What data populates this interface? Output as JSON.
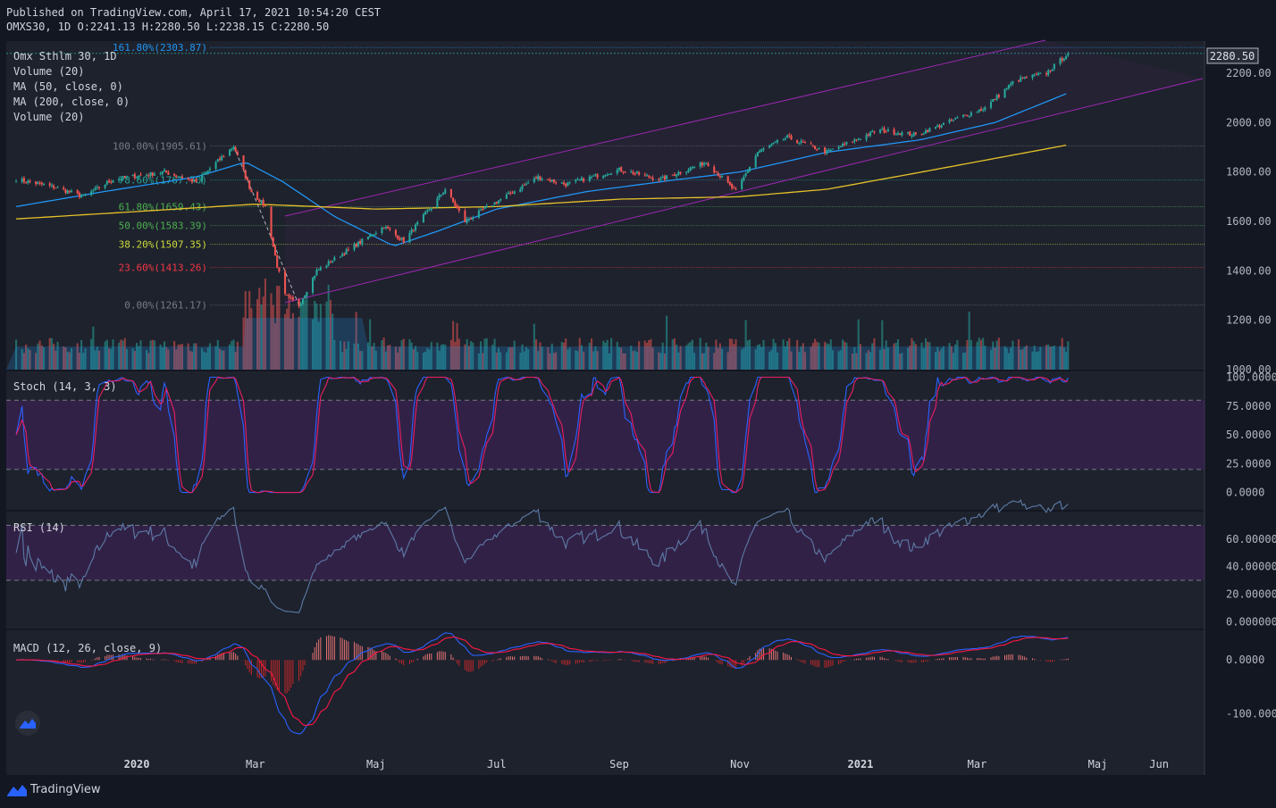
{
  "header": {
    "published": "Published on TradingView.com, April 17, 2021 10:54:20 CEST",
    "ohlc": "OMXS30, 1D O:2241.13 H:2280.50 L:2238.15 C:2280.50"
  },
  "legend": {
    "symbol": "Omx Sthlm 30, 1D",
    "vol1": "Volume (20)",
    "ma50": "MA (50, close, 0)",
    "ma200": "MA (200, close, 0)",
    "vol2": "Volume (20)"
  },
  "price_badge": "2280.50",
  "footer": {
    "brand": "TradingView"
  },
  "colors": {
    "background": "#131722",
    "pane": "#1e222d",
    "up": "#26a69a",
    "down": "#ef5350",
    "ma50": "#2196f3",
    "ma200": "#e6c229",
    "channel": "#9c27b0",
    "stoch_k": "#2962ff",
    "stoch_d": "#e91e63",
    "rsi": "#5c7ba6",
    "macd": "#2962ff",
    "signal": "#ff1744"
  },
  "chart_data": [
    {
      "type": "candlestick",
      "title": "Omx Sthlm 30, 1D",
      "ylim": [
        1000,
        2330
      ],
      "y_ticks": [
        "2200.00",
        "2000.00",
        "1800.00",
        "1600.00",
        "1400.00",
        "1200.00",
        "1000.00"
      ],
      "x_ticks": [
        "2020",
        "Mar",
        "Maj",
        "Jul",
        "Sep",
        "Nov",
        "2021",
        "Mar",
        "Maj",
        "Jun"
      ],
      "last_price": 2280.5,
      "close_path": [
        [
          "2019-11-01",
          1770
        ],
        [
          "2019-11-20",
          1740
        ],
        [
          "2019-12-05",
          1700
        ],
        [
          "2019-12-20",
          1770
        ],
        [
          "2020-01-15",
          1800
        ],
        [
          "2020-01-31",
          1760
        ],
        [
          "2020-02-19",
          1905
        ],
        [
          "2020-02-28",
          1720
        ],
        [
          "2020-03-06",
          1660
        ],
        [
          "2020-03-12",
          1420
        ],
        [
          "2020-03-16",
          1300
        ],
        [
          "2020-03-23",
          1261
        ],
        [
          "2020-04-01",
          1400
        ],
        [
          "2020-04-20",
          1500
        ],
        [
          "2020-05-05",
          1580
        ],
        [
          "2020-05-15",
          1520
        ],
        [
          "2020-06-05",
          1730
        ],
        [
          "2020-06-15",
          1600
        ],
        [
          "2020-07-01",
          1680
        ],
        [
          "2020-07-22",
          1780
        ],
        [
          "2020-08-05",
          1750
        ],
        [
          "2020-09-01",
          1810
        ],
        [
          "2020-09-22",
          1770
        ],
        [
          "2020-10-15",
          1840
        ],
        [
          "2020-10-30",
          1720
        ],
        [
          "2020-11-10",
          1880
        ],
        [
          "2020-11-25",
          1940
        ],
        [
          "2020-12-15",
          1880
        ],
        [
          "2021-01-10",
          1970
        ],
        [
          "2021-01-29",
          1950
        ],
        [
          "2021-02-20",
          2020
        ],
        [
          "2021-03-05",
          2060
        ],
        [
          "2021-03-20",
          2170
        ],
        [
          "2021-04-05",
          2200
        ],
        [
          "2021-04-16",
          2280.5
        ]
      ],
      "ma50_path": [
        [
          "2019-11-01",
          1660
        ],
        [
          "2019-12-15",
          1720
        ],
        [
          "2020-01-31",
          1780
        ],
        [
          "2020-02-25",
          1840
        ],
        [
          "2020-03-15",
          1760
        ],
        [
          "2020-04-10",
          1620
        ],
        [
          "2020-05-10",
          1500
        ],
        [
          "2020-06-01",
          1560
        ],
        [
          "2020-07-01",
          1650
        ],
        [
          "2020-08-15",
          1720
        ],
        [
          "2020-10-01",
          1770
        ],
        [
          "2020-11-01",
          1800
        ],
        [
          "2020-12-15",
          1880
        ],
        [
          "2021-01-31",
          1930
        ],
        [
          "2021-03-10",
          2000
        ],
        [
          "2021-04-16",
          2120
        ]
      ],
      "ma200_path": [
        [
          "2019-11-01",
          1610
        ],
        [
          "2020-01-01",
          1640
        ],
        [
          "2020-03-01",
          1670
        ],
        [
          "2020-05-01",
          1650
        ],
        [
          "2020-07-01",
          1660
        ],
        [
          "2020-09-01",
          1690
        ],
        [
          "2020-11-01",
          1700
        ],
        [
          "2020-12-15",
          1730
        ],
        [
          "2021-02-01",
          1800
        ],
        [
          "2021-04-16",
          1910
        ]
      ],
      "fibonacci": [
        {
          "label": "161.80%(2303.87)",
          "value": 2303.87,
          "color": "#2196f3"
        },
        {
          "label": "100.00%(1905.61)",
          "value": 1905.61,
          "color": "#787b86"
        },
        {
          "label": "78.60%(1767.70)",
          "value": 1767.7,
          "color": "#26a69a"
        },
        {
          "label": "61.80%(1659.43)",
          "value": 1659.43,
          "color": "#4caf50"
        },
        {
          "label": "50.00%(1583.39)",
          "value": 1583.39,
          "color": "#4caf50"
        },
        {
          "label": "38.20%(1507.35)",
          "value": 1507.35,
          "color": "#cddc39"
        },
        {
          "label": "23.60%(1413.26)",
          "value": 1413.26,
          "color": "#f23645"
        },
        {
          "label": "0.00%(1261.17)",
          "value": 1261.17,
          "color": "#787b86"
        }
      ]
    },
    {
      "type": "line",
      "title": "Stoch (14, 3, 3)",
      "ylim": [
        -15,
        105
      ],
      "y_ticks": [
        "100.0000",
        "75.0000",
        "50.0000",
        "25.0000",
        "0.0000"
      ],
      "bands": [
        20,
        80
      ]
    },
    {
      "type": "line",
      "title": "RSI (14)",
      "ylim": [
        -5,
        80
      ],
      "y_ticks": [
        "60.000000",
        "40.000000",
        "20.000000",
        "0.000000"
      ],
      "bands": [
        30,
        70
      ]
    },
    {
      "type": "line",
      "title": "MACD (12, 26, close, 9)",
      "ylim": [
        -170,
        55
      ],
      "y_ticks": [
        "0.0000",
        "-100.0000"
      ]
    }
  ]
}
